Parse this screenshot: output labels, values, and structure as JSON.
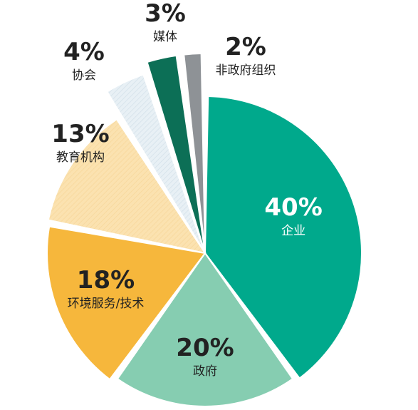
{
  "chart_data": {
    "type": "pie",
    "slices": [
      {
        "label": "企业",
        "value": 40,
        "value_text": "40%",
        "color": "#00a98c",
        "text_color": "#ffffff",
        "hatch": false
      },
      {
        "label": "政府",
        "value": 20,
        "value_text": "20%",
        "color": "#86cdb1",
        "text_color": "#222222",
        "hatch": false
      },
      {
        "label": "环境服务/技术",
        "value": 18,
        "value_text": "18%",
        "color": "#f6b73c",
        "text_color": "#222222",
        "hatch": false
      },
      {
        "label": "教育机构",
        "value": 13,
        "value_text": "13%",
        "color": "#fbe2b0",
        "text_color": "#222222",
        "hatch": true
      },
      {
        "label": "协会",
        "value": 4,
        "value_text": "4%",
        "color": "#e6eef3",
        "text_color": "#222222",
        "hatch": true
      },
      {
        "label": "媒体",
        "value": 3,
        "value_text": "3%",
        "color": "#0c6f56",
        "text_color": "#222222",
        "hatch": false
      },
      {
        "label": "非政府组织",
        "value": 2,
        "value_text": "2%",
        "color": "#8e9296",
        "text_color": "#222222",
        "hatch": false
      }
    ]
  }
}
